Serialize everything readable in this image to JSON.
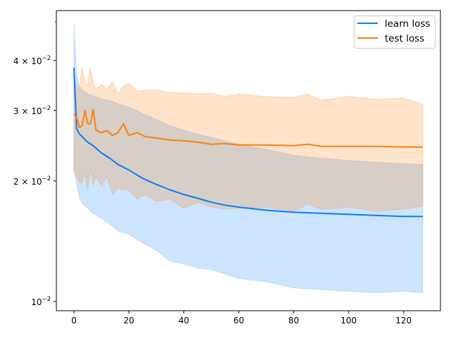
{
  "chart_data": {
    "type": "line",
    "title": "",
    "xlabel": "",
    "ylabel": "",
    "yscale": "log",
    "xlim": [
      -6.4,
      133.4
    ],
    "ylim": [
      0.00948,
      0.0533
    ],
    "xticks": [
      0,
      20,
      40,
      60,
      80,
      100,
      120
    ],
    "xtick_labels": [
      "0",
      "20",
      "40",
      "60",
      "80",
      "100",
      "120"
    ],
    "yticks": [
      0.01,
      0.02,
      0.03,
      0.04
    ],
    "ytick_labels": [
      {
        "mant": "10",
        "exp": "−2",
        "prefix": ""
      },
      {
        "mant": "10",
        "exp": "−2",
        "prefix": "2 × "
      },
      {
        "mant": "10",
        "exp": "−2",
        "prefix": "3 × "
      },
      {
        "mant": "10",
        "exp": "−2",
        "prefix": "4 × "
      }
    ],
    "legend": {
      "placement": "upper-right",
      "entries": [
        "learn loss",
        "test loss"
      ]
    },
    "series": [
      {
        "name": "learn loss",
        "color": "#1f77b4",
        "line_color": "#0a7df5",
        "x": [
          0,
          1,
          2,
          3,
          5,
          7,
          10,
          13,
          16,
          20,
          25,
          30,
          35,
          40,
          45,
          50,
          55,
          60,
          70,
          80,
          90,
          100,
          110,
          120,
          127
        ],
        "mean": [
          0.0384,
          0.027,
          0.0262,
          0.0258,
          0.025,
          0.0245,
          0.0235,
          0.0228,
          0.022,
          0.0213,
          0.0203,
          0.0196,
          0.019,
          0.0185,
          0.0181,
          0.0177,
          0.0174,
          0.0172,
          0.0169,
          0.0167,
          0.0166,
          0.0165,
          0.0164,
          0.0163,
          0.0163
        ],
        "upper": [
          0.0494,
          0.037,
          0.0345,
          0.0338,
          0.033,
          0.0326,
          0.0321,
          0.0318,
          0.0312,
          0.0306,
          0.0295,
          0.0285,
          0.0275,
          0.0268,
          0.0262,
          0.0257,
          0.0252,
          0.0247,
          0.024,
          0.0232,
          0.0228,
          0.0225,
          0.0223,
          0.0221,
          0.022
        ],
        "lower": [
          0.0214,
          0.0194,
          0.0182,
          0.0176,
          0.0171,
          0.0166,
          0.0161,
          0.0156,
          0.015,
          0.0147,
          0.014,
          0.0134,
          0.0126,
          0.0124,
          0.0121,
          0.012,
          0.0117,
          0.0114,
          0.0112,
          0.0108,
          0.0107,
          0.0106,
          0.0105,
          0.0106,
          0.0105
        ]
      },
      {
        "name": "test loss",
        "color": "#ff7f0e",
        "line_color": "#ff7f0e",
        "x": [
          0,
          1,
          2,
          3,
          4,
          5,
          6,
          7,
          8,
          10,
          12,
          14,
          16,
          18,
          20,
          23,
          26,
          30,
          35,
          40,
          45,
          50,
          55,
          60,
          70,
          80,
          85,
          90,
          100,
          110,
          120,
          127
        ],
        "mean": [
          0.0294,
          0.0288,
          0.0272,
          0.0275,
          0.03,
          0.0278,
          0.0278,
          0.0302,
          0.0268,
          0.0264,
          0.0267,
          0.026,
          0.0264,
          0.0278,
          0.026,
          0.0264,
          0.0258,
          0.0256,
          0.0253,
          0.0252,
          0.025,
          0.0247,
          0.0248,
          0.0246,
          0.0246,
          0.0245,
          0.0247,
          0.0244,
          0.0244,
          0.0244,
          0.0243,
          0.0243
        ],
        "upper": [
          0.037,
          0.0345,
          0.034,
          0.0383,
          0.0355,
          0.0345,
          0.0383,
          0.035,
          0.034,
          0.0348,
          0.034,
          0.0355,
          0.033,
          0.0345,
          0.0351,
          0.0335,
          0.0338,
          0.0338,
          0.0332,
          0.0332,
          0.033,
          0.0331,
          0.0325,
          0.033,
          0.0325,
          0.0323,
          0.033,
          0.0318,
          0.0325,
          0.032,
          0.0322,
          0.0311
        ],
        "lower": [
          0.0213,
          0.0205,
          0.0198,
          0.0198,
          0.021,
          0.019,
          0.0215,
          0.0195,
          0.0205,
          0.0195,
          0.0205,
          0.0185,
          0.0192,
          0.019,
          0.019,
          0.018,
          0.0185,
          0.0178,
          0.018,
          0.0171,
          0.0177,
          0.0172,
          0.017,
          0.0171,
          0.0172,
          0.0168,
          0.0175,
          0.017,
          0.0172,
          0.0168,
          0.017,
          0.0173
        ]
      }
    ]
  }
}
